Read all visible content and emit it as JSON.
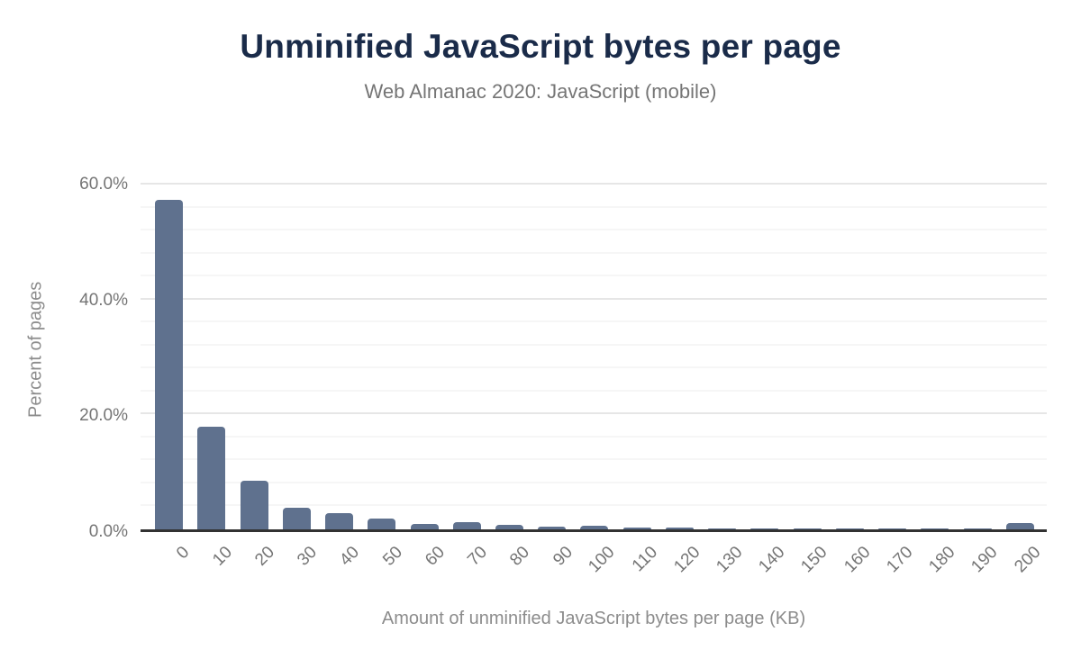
{
  "header": {
    "title": "Unminified JavaScript bytes per page",
    "subtitle": "Web Almanac 2020: JavaScript (mobile)"
  },
  "chart_data": {
    "type": "bar",
    "title": "Unminified JavaScript bytes per page",
    "subtitle": "Web Almanac 2020: JavaScript (mobile)",
    "xlabel": "Amount of unminified JavaScript bytes per page (KB)",
    "ylabel": "Percent of pages",
    "categories": [
      "0",
      "10",
      "20",
      "30",
      "40",
      "50",
      "60",
      "70",
      "80",
      "90",
      "100",
      "110",
      "120",
      "130",
      "140",
      "150",
      "160",
      "170",
      "180",
      "190",
      "200"
    ],
    "values": [
      57.3,
      17.8,
      8.4,
      3.7,
      2.9,
      1.9,
      1.0,
      1.2,
      0.8,
      0.5,
      0.6,
      0.3,
      0.3,
      0.2,
      0.2,
      0.2,
      0.2,
      0.2,
      0.2,
      0.2,
      1.1
    ],
    "value_unit": "percent",
    "ylim": [
      0,
      63
    ],
    "yticks": [
      {
        "value": 0,
        "label": "0.0%"
      },
      {
        "value": 20,
        "label": "20.0%"
      },
      {
        "value": 40,
        "label": "40.0%"
      },
      {
        "value": 60,
        "label": "60.0%"
      }
    ],
    "minor_grid_step": 4,
    "grid": true,
    "legend": "none",
    "x_tick_rotation": -45
  },
  "colors": {
    "background": "#ffffff",
    "title": "#1a2b49",
    "subtitle": "#757575",
    "tick": "#757575",
    "axis_title": "#8c8c8c",
    "bar": "#5f718e",
    "axis_line": "#323232",
    "grid_major": "#e6e6e6",
    "grid_minor": "#f6f6f6"
  }
}
